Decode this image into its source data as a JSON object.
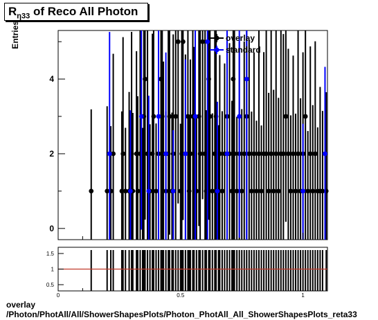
{
  "header": {
    "title_prefix": "R",
    "title_sub": "η33",
    "title_rest": " of Reco All Photon"
  },
  "chart_data": [
    {
      "type": "scatter",
      "title": "R η33 of Reco All Photon",
      "ylabel": "Entries",
      "xlim": [
        0.0,
        1.1
      ],
      "ylim": [
        -0.3,
        5.3
      ],
      "yticks": [
        "0",
        "2",
        "4"
      ],
      "grid": false,
      "legend_position": "top-right",
      "series": [
        {
          "name": "overlay",
          "color": "#000000",
          "x": [
            0.135,
            0.2,
            0.215,
            0.225,
            0.26,
            0.265,
            0.275,
            0.29,
            0.3,
            0.305,
            0.32,
            0.325,
            0.335,
            0.345,
            0.35,
            0.355,
            0.365,
            0.375,
            0.385,
            0.39,
            0.4,
            0.41,
            0.42,
            0.425,
            0.43,
            0.44,
            0.45,
            0.455,
            0.465,
            0.47,
            0.48,
            0.49,
            0.5,
            0.505,
            0.51,
            0.52,
            0.53,
            0.535,
            0.54,
            0.55,
            0.555,
            0.565,
            0.575,
            0.58,
            0.59,
            0.6,
            0.605,
            0.615,
            0.62,
            0.63,
            0.64,
            0.645,
            0.655,
            0.66,
            0.67,
            0.68,
            0.69,
            0.7,
            0.71,
            0.715,
            0.72,
            0.73,
            0.74,
            0.75,
            0.76,
            0.77,
            0.78,
            0.79,
            0.8,
            0.81,
            0.82,
            0.83,
            0.84,
            0.85,
            0.86,
            0.87,
            0.88,
            0.89,
            0.9,
            0.91,
            0.92,
            0.93,
            0.94,
            0.95,
            0.96,
            0.97,
            0.98,
            0.99,
            1.0,
            1.01,
            1.02,
            1.03,
            1.04,
            1.05,
            1.06,
            1.07,
            1.08,
            1.095
          ],
          "y": [
            1,
            1,
            1,
            2,
            1,
            2,
            1,
            1,
            2,
            1,
            2,
            1,
            2,
            1,
            3,
            4,
            2,
            1,
            2,
            3,
            1,
            2,
            4,
            3,
            2,
            1,
            2,
            3,
            1,
            2,
            3,
            5,
            1,
            2,
            5,
            2,
            3,
            1,
            2,
            3,
            2,
            1,
            3,
            2,
            5,
            2,
            1,
            4,
            3,
            1,
            2,
            3,
            1,
            2,
            1,
            2,
            3,
            2,
            1,
            4,
            2,
            1,
            2,
            1,
            2,
            3,
            2,
            1,
            2,
            1,
            2,
            1,
            2,
            2,
            1,
            2,
            1,
            2,
            1,
            2,
            2,
            3,
            2,
            1,
            2,
            1,
            2,
            1,
            2,
            3,
            1,
            2,
            1,
            2,
            1,
            1,
            1,
            1
          ]
        },
        {
          "name": "standard",
          "color": "#0000ff",
          "x": [
            0.21,
            0.295,
            0.34,
            0.37,
            0.41,
            0.44,
            0.47,
            0.52,
            0.56,
            0.61,
            0.65,
            0.69,
            0.74,
            0.77,
            1.0,
            1.09
          ],
          "y": [
            2,
            1,
            3,
            1,
            3,
            2,
            1,
            2,
            3,
            5,
            1,
            2,
            3,
            4,
            1,
            2
          ]
        }
      ]
    },
    {
      "type": "scatter",
      "title": "",
      "xlim": [
        0.0,
        1.1
      ],
      "ylim": [
        0.3,
        1.7
      ],
      "yticks": [
        "0.5",
        "1",
        "1.5"
      ],
      "xticks": [
        "0",
        "0.5",
        "1"
      ],
      "reference_line": 1.0,
      "reference_color": "#c0392b"
    }
  ],
  "footer": {
    "line1": "overlay",
    "line2": "/Photon/PhotAll/All/ShowerShapesPlots/Photon_PhotAll_All_ShowerShapesPlots_reta33"
  }
}
